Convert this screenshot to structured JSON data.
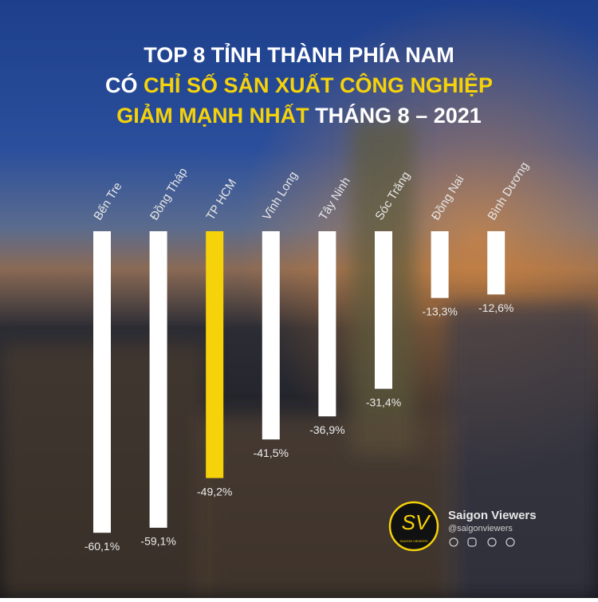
{
  "chart_data": {
    "type": "bar",
    "title_lines": [
      [
        {
          "text": "TOP 8 TỈNH THÀNH PHÍA NAM",
          "color": "#ffffff"
        }
      ],
      [
        {
          "text": "CÓ ",
          "color": "#ffffff"
        },
        {
          "text": "CHỈ SỐ SẢN XUẤT CÔNG NGHIỆP",
          "color": "#f5d20a"
        }
      ],
      [
        {
          "text": "GIẢM MẠNH NHẤT",
          "color": "#f5d20a"
        },
        {
          "text": " THÁNG 8 – 2021",
          "color": "#ffffff"
        }
      ]
    ],
    "categories": [
      "Bến Tre",
      "Đồng Tháp",
      "TP HCM",
      "Vĩnh Long",
      "Tây Ninh",
      "Sóc Trăng",
      "Đồng Nai",
      "Bình Dương"
    ],
    "values": [
      -60.1,
      -59.1,
      -49.2,
      -41.5,
      -36.9,
      -31.4,
      -13.3,
      -12.6
    ],
    "value_labels": [
      "-60,1%",
      "-59,1%",
      "-49,2%",
      "-41,5%",
      "-36,9%",
      "-31,4%",
      "-13,3%",
      "-12,6%"
    ],
    "colors": [
      "#ffffff",
      "#ffffff",
      "#f5d20a",
      "#ffffff",
      "#ffffff",
      "#ffffff",
      "#ffffff",
      "#ffffff"
    ],
    "ylim": [
      -65,
      0
    ]
  },
  "brand": {
    "mark": "SV",
    "mark_caption": "SAIGON VIEWERS",
    "name": "Saigon Viewers",
    "handle": "@saigonviewers"
  }
}
